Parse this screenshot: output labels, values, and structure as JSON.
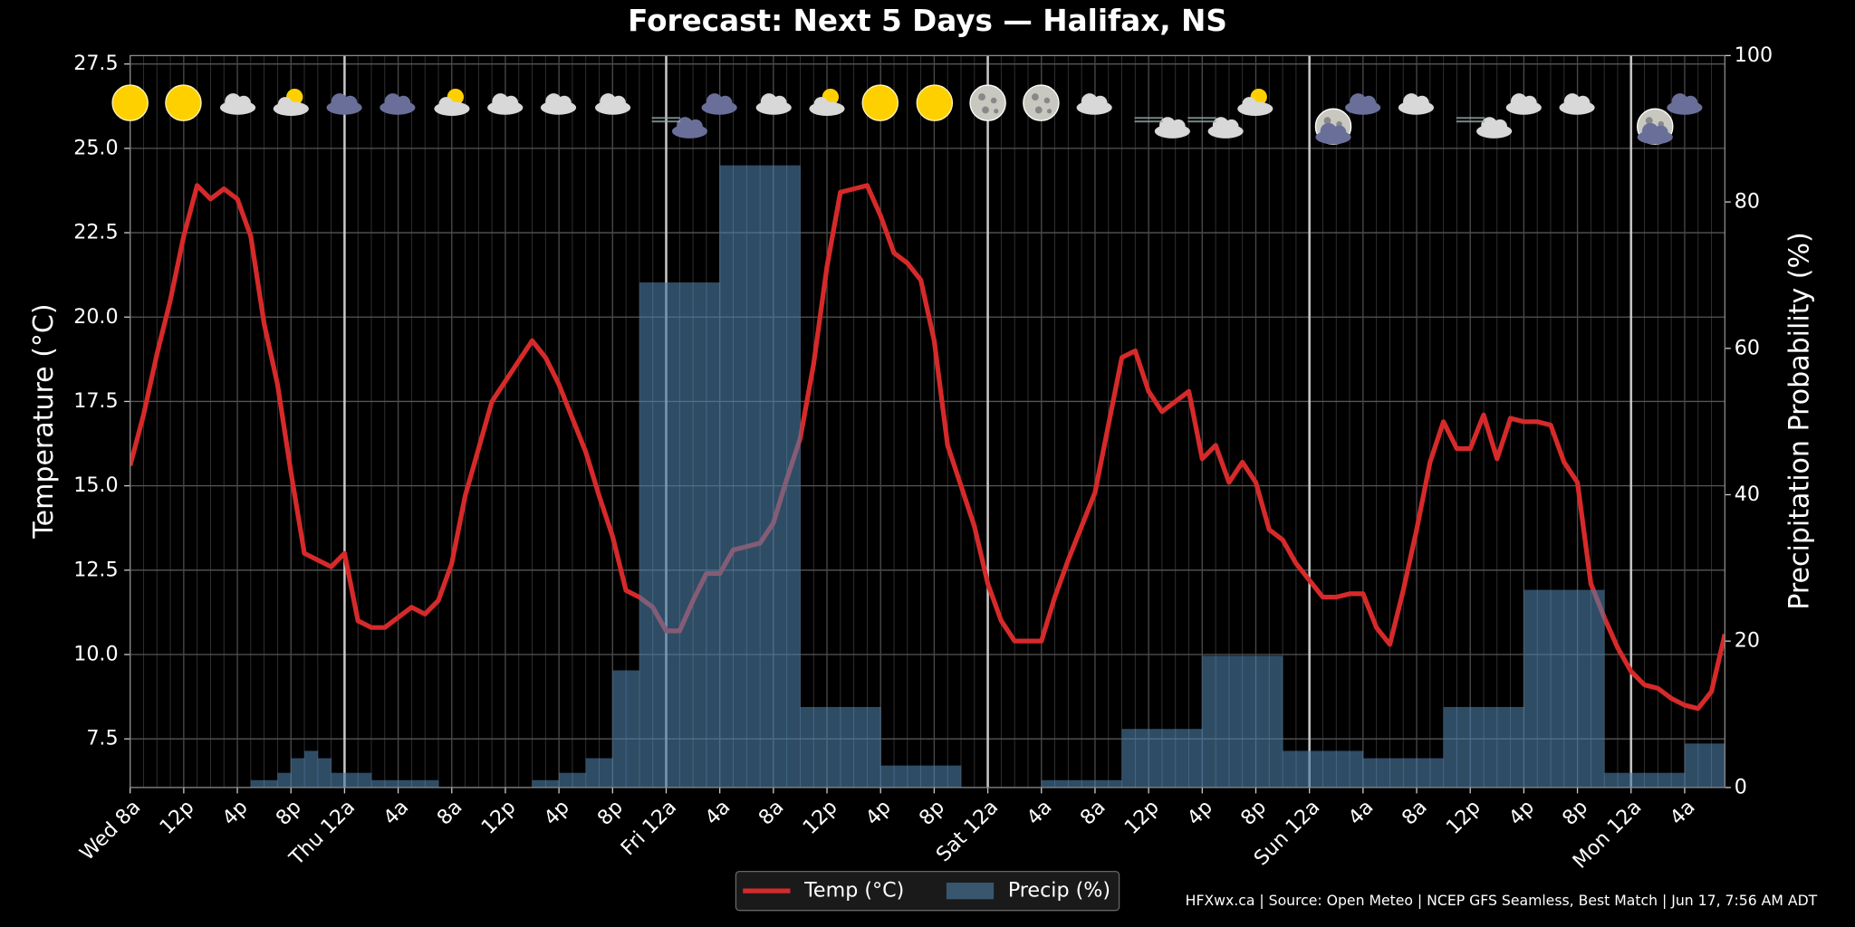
{
  "chart_data": {
    "type": "line",
    "title": "Forecast: Next 5 Days — Halifax, NS",
    "ylabel": "Temperature (°C)",
    "y2label": "Precipitation Probability (%)",
    "footer": "HFXwx.ca | Source: Open Meteo | NCEP GFS Seamless, Best Match | Jun 17, 7:56 AM ADT",
    "legend": "lower center",
    "grid": true,
    "xlim": [
      0,
      119
    ],
    "xticks": [
      {
        "value": 0,
        "label": "Wed 8a"
      },
      {
        "value": 4,
        "label": "12p"
      },
      {
        "value": 8,
        "label": "4p"
      },
      {
        "value": 12,
        "label": "8p"
      },
      {
        "value": 16,
        "label": "Thu 12a"
      },
      {
        "value": 20,
        "label": "4a"
      },
      {
        "value": 24,
        "label": "8a"
      },
      {
        "value": 28,
        "label": "12p"
      },
      {
        "value": 32,
        "label": "4p"
      },
      {
        "value": 36,
        "label": "8p"
      },
      {
        "value": 40,
        "label": "Fri 12a"
      },
      {
        "value": 44,
        "label": "4a"
      },
      {
        "value": 48,
        "label": "8a"
      },
      {
        "value": 52,
        "label": "12p"
      },
      {
        "value": 56,
        "label": "4p"
      },
      {
        "value": 60,
        "label": "8p"
      },
      {
        "value": 64,
        "label": "Sat 12a"
      },
      {
        "value": 68,
        "label": "4a"
      },
      {
        "value": 72,
        "label": "8a"
      },
      {
        "value": 76,
        "label": "12p"
      },
      {
        "value": 80,
        "label": "4p"
      },
      {
        "value": 84,
        "label": "8p"
      },
      {
        "value": 88,
        "label": "Sun 12a"
      },
      {
        "value": 92,
        "label": "4a"
      },
      {
        "value": 96,
        "label": "8a"
      },
      {
        "value": 100,
        "label": "12p"
      },
      {
        "value": 104,
        "label": "4p"
      },
      {
        "value": 108,
        "label": "8p"
      },
      {
        "value": 112,
        "label": "Mon 12a"
      },
      {
        "value": 116,
        "label": "4a"
      }
    ],
    "vlines": [
      16,
      40,
      64,
      88,
      112
    ],
    "ylim": [
      6.06,
      27.75
    ],
    "yticks": [
      7.5,
      {
        "value": 10,
        "label": "10.0"
      },
      12.5,
      {
        "value": 15,
        "label": "15.0"
      },
      17.5,
      {
        "value": 20,
        "label": "20.0"
      },
      22.5,
      {
        "value": 25,
        "label": "25.0"
      },
      27.5
    ],
    "y2lim": [
      0,
      100
    ],
    "y2ticks": [
      0,
      20,
      40,
      60,
      80,
      100
    ],
    "series": [
      {
        "name": "Temp (°C)",
        "color": "#d62a2a",
        "values": [
          15.6,
          17.1,
          18.9,
          20.5,
          22.4,
          23.9,
          23.5,
          23.8,
          23.5,
          22.4,
          19.8,
          18.0,
          15.4,
          13.0,
          12.8,
          12.6,
          13.0,
          11.0,
          10.8,
          10.8,
          11.1,
          11.4,
          11.2,
          11.6,
          12.7,
          14.7,
          16.1,
          17.5,
          18.1,
          18.7,
          19.3,
          18.8,
          18.0,
          17.0,
          16.0,
          14.7,
          13.5,
          11.9,
          11.7,
          11.4,
          10.7,
          10.7,
          11.6,
          12.4,
          12.4,
          13.1,
          13.2,
          13.3,
          13.9,
          15.2,
          16.4,
          18.6,
          21.5,
          23.7,
          23.8,
          23.9,
          23.0,
          21.9,
          21.6,
          21.1,
          19.3,
          16.2,
          15.0,
          13.8,
          12.1,
          11.0,
          10.4,
          10.4,
          10.4,
          11.7,
          12.8,
          13.8,
          14.8,
          16.8,
          18.8,
          19.0,
          17.8,
          17.2,
          17.5,
          17.8,
          15.8,
          16.2,
          15.1,
          15.7,
          15.1,
          13.7,
          13.4,
          12.7,
          12.2,
          11.7,
          11.7,
          11.8,
          11.8,
          10.8,
          10.3,
          11.9,
          13.7,
          15.7,
          16.9,
          16.1,
          16.1,
          17.1,
          15.8,
          17.0,
          16.9,
          16.9,
          16.8,
          15.7,
          15.1,
          12.1,
          11.1,
          10.2,
          9.5,
          9.1,
          9.0,
          8.7,
          8.5,
          8.4,
          8.9,
          10.6
        ]
      },
      {
        "name": "Precip (%)",
        "color": "#4f7ea8",
        "type": "bar",
        "axis": "y2",
        "values": [
          0,
          0,
          0,
          0,
          0,
          0,
          0,
          0,
          0,
          1,
          1,
          2,
          4,
          5,
          4,
          2,
          2,
          2,
          1,
          1,
          1,
          1,
          1,
          0,
          0,
          0,
          0,
          0,
          0,
          0,
          1,
          1,
          2,
          2,
          4,
          4,
          16,
          16,
          69,
          69,
          69,
          69,
          69,
          69,
          85,
          85,
          85,
          85,
          85,
          85,
          11,
          11,
          11,
          11,
          11,
          11,
          3,
          3,
          3,
          3,
          3,
          3,
          0,
          0,
          0,
          0,
          0,
          0,
          1,
          1,
          1,
          1,
          1,
          1,
          8,
          8,
          8,
          8,
          8,
          8,
          18,
          18,
          18,
          18,
          18,
          18,
          5,
          5,
          5,
          5,
          5,
          5,
          4,
          4,
          4,
          4,
          4,
          4,
          11,
          11,
          11,
          11,
          11,
          11,
          27,
          27,
          27,
          27,
          27,
          27,
          2,
          2,
          2,
          2,
          2,
          2,
          6,
          6,
          6,
          6
        ]
      }
    ]
  }
}
